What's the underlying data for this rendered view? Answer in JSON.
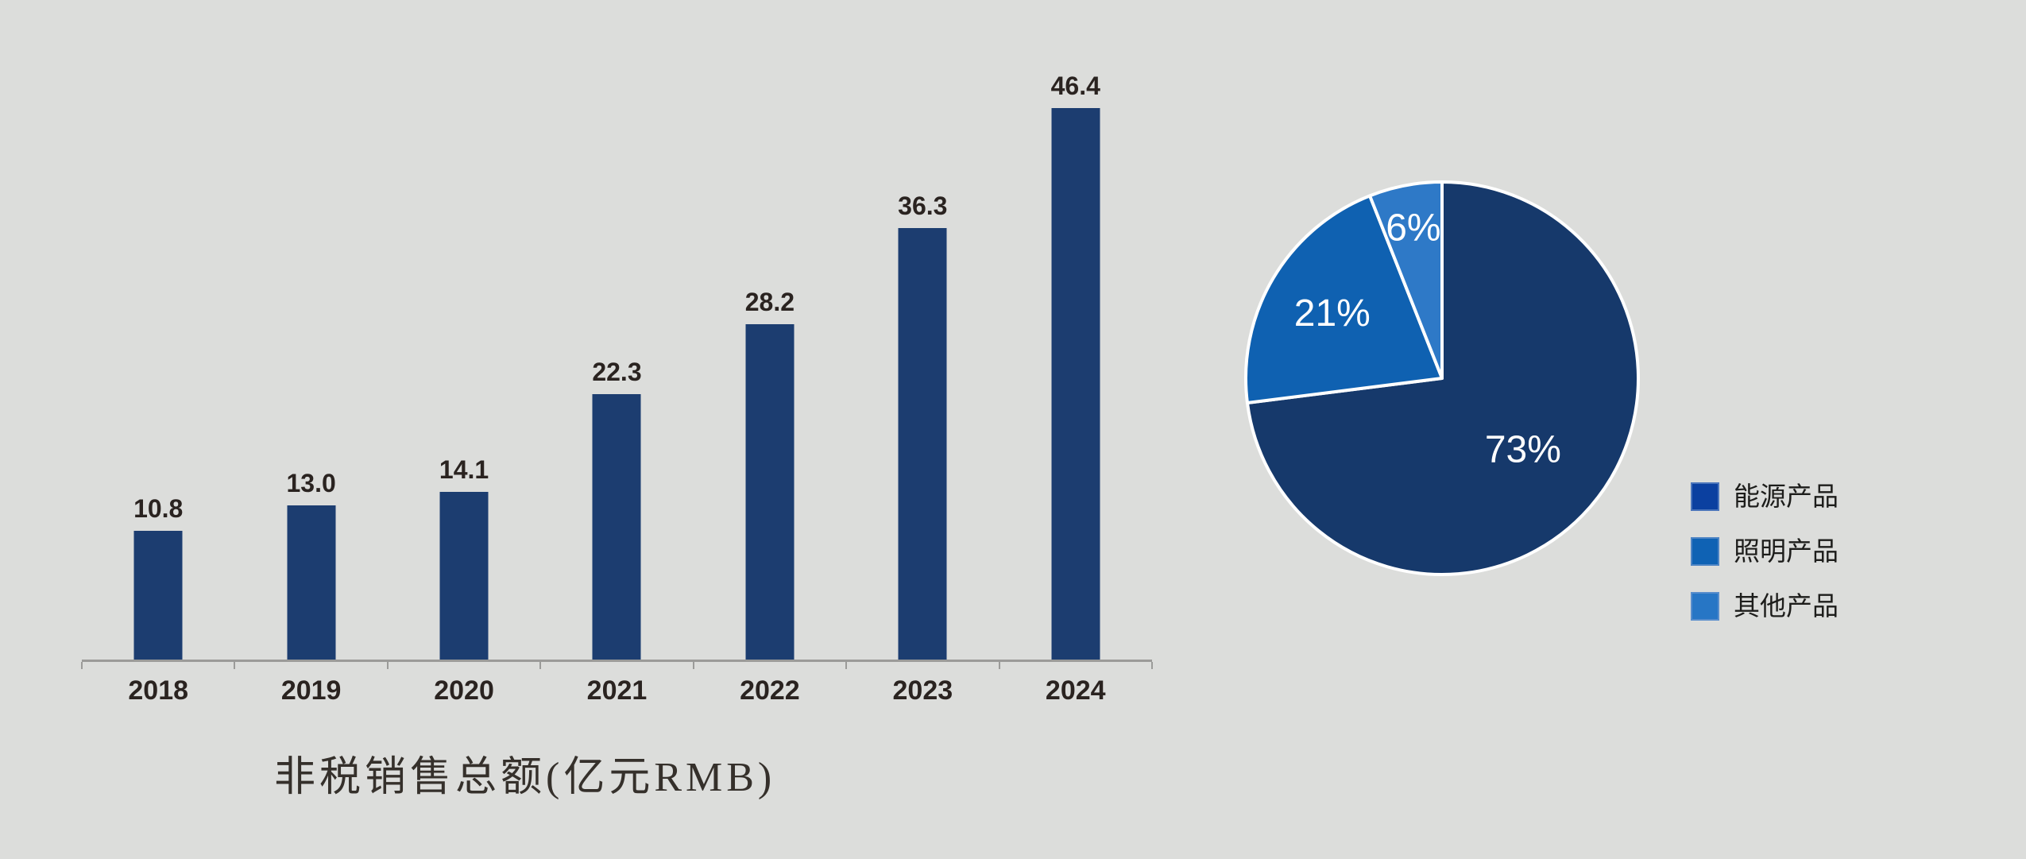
{
  "page": {
    "background_color": "#DCDDDB"
  },
  "chart_data": [
    {
      "type": "bar",
      "title": "非税销售总额(亿元RMB)",
      "categories": [
        "2018",
        "2019",
        "2020",
        "2021",
        "2022",
        "2023",
        "2024"
      ],
      "values": [
        10.8,
        13.0,
        14.1,
        22.3,
        28.2,
        36.3,
        46.4
      ],
      "value_labels": [
        "10.8",
        "13.0",
        "14.1",
        "22.3",
        "28.2",
        "36.3",
        "46.4"
      ],
      "xlabel": "",
      "ylabel": "",
      "ylim": [
        0,
        48
      ],
      "grid": false,
      "y_axis_shown": false,
      "tick_style": "between-categories",
      "bar_color": "#1C3D70",
      "axis_color": "#9B9B99",
      "value_label_color": "#2A2320",
      "category_label_color": "#2A2320",
      "title_color": "#35302B"
    },
    {
      "type": "pie",
      "start_angle": "top",
      "direction": "clockwise",
      "slice_border_color": "#FFFFFF",
      "percent_label_color": "#FFFFFF",
      "legend_position": "right",
      "slices": [
        {
          "label": "能源产品",
          "value": 73,
          "display": "73%",
          "color": "#16396B",
          "legend_color": "#0B40A0",
          "label_radius": 0.55
        },
        {
          "label": "照明产品",
          "value": 21,
          "display": "21%",
          "color": "#0F61B1",
          "legend_color": "#0F62B4",
          "label_radius": 0.65
        },
        {
          "label": "其他产品",
          "value": 6,
          "display": "6%",
          "color": "#2E79C7",
          "legend_color": "#2776C5",
          "label_radius": 0.78
        }
      ]
    }
  ]
}
